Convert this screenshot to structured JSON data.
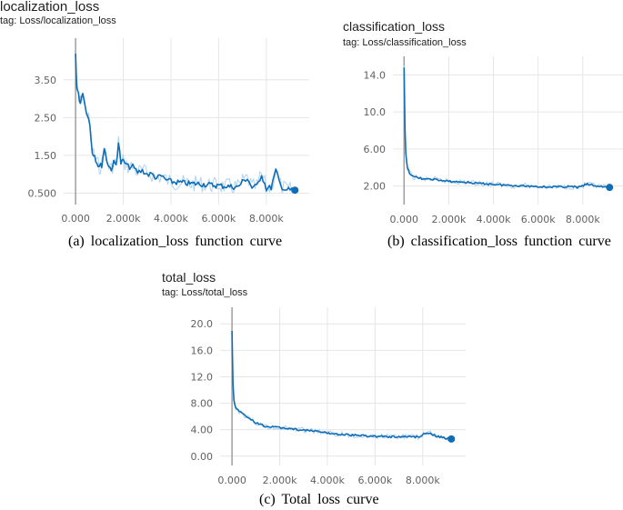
{
  "figure": {
    "panels": [
      {
        "title": "localization_loss",
        "tag": "tag: Loss/localization_loss",
        "caption": "(a) localization_loss function curve"
      },
      {
        "title": "classification_loss",
        "tag": "tag: Loss/classification_loss",
        "caption": "(b) classification_loss function curve"
      },
      {
        "title": "total_loss",
        "tag": "tag: Loss/total_loss",
        "caption": "(c) Total loss curve"
      }
    ]
  },
  "chart_data": [
    {
      "type": "line",
      "title": "localization_loss",
      "x_tick_labels": [
        "0.000",
        "2.000k",
        "4.000k",
        "6.000k",
        "8.000k"
      ],
      "x_ticks": [
        0,
        2000,
        4000,
        6000,
        8000
      ],
      "y_tick_labels": [
        "3.50",
        "2.50",
        "1.50",
        "0.500"
      ],
      "y_ticks": [
        3.5,
        2.5,
        1.5,
        0.5
      ],
      "xlim": [
        -500,
        9800
      ],
      "ylim": [
        0.2,
        4.6
      ],
      "grid": true,
      "colors": {
        "line": "#0f6db8",
        "raw": "#aed3ef",
        "axis": "#9e9e9e"
      },
      "series": [
        {
          "x": [
            0,
            50,
            120,
            200,
            300,
            400,
            500,
            600,
            700,
            800,
            900,
            1000,
            1100,
            1200,
            1300,
            1400,
            1500,
            1600,
            1700,
            1800,
            1900,
            2000,
            2200,
            2400,
            2600,
            2800,
            3000,
            3200,
            3400,
            3600,
            3800,
            4000,
            4400,
            4800,
            5200,
            5600,
            6000,
            6400,
            6800,
            7000,
            7200,
            7400,
            7600,
            7800,
            8000,
            8200,
            8400,
            8600,
            8800,
            9000,
            9200
          ],
          "y": [
            4.2,
            3.3,
            3.1,
            2.9,
            3.2,
            2.8,
            2.6,
            2.3,
            1.6,
            1.5,
            1.3,
            1.2,
            1.25,
            1.7,
            1.4,
            1.2,
            1.15,
            1.3,
            1.25,
            1.85,
            1.3,
            1.35,
            1.2,
            1.2,
            1.05,
            1.1,
            1.0,
            1.0,
            0.9,
            0.95,
            0.85,
            0.8,
            0.78,
            0.75,
            0.75,
            0.72,
            0.7,
            0.68,
            0.66,
            0.8,
            0.9,
            0.65,
            0.68,
            1.0,
            0.62,
            0.65,
            1.1,
            0.7,
            0.6,
            0.58,
            0.58
          ]
        }
      ]
    },
    {
      "type": "line",
      "title": "classification_loss",
      "x_tick_labels": [
        "0.000",
        "2.000k",
        "4.000k",
        "6.000k",
        "8.000k"
      ],
      "x_ticks": [
        0,
        2000,
        4000,
        6000,
        8000
      ],
      "y_tick_labels": [
        "14.0",
        "10.0",
        "6.00",
        "2.00"
      ],
      "y_ticks": [
        14,
        10,
        6,
        2
      ],
      "xlim": [
        -500,
        9800
      ],
      "ylim": [
        0,
        16
      ],
      "grid": true,
      "colors": {
        "line": "#0f6db8",
        "raw": "#aed3ef",
        "axis": "#9e9e9e"
      },
      "series": [
        {
          "x": [
            0,
            40,
            80,
            150,
            250,
            400,
            600,
            800,
            1000,
            1300,
            1600,
            2000,
            2400,
            2800,
            3200,
            3600,
            4000,
            4500,
            5000,
            5500,
            6000,
            6500,
            7000,
            7400,
            7800,
            8200,
            8600,
            9000,
            9200
          ],
          "y": [
            14.7,
            8.0,
            5.5,
            4.0,
            3.4,
            3.0,
            2.9,
            2.8,
            2.7,
            2.75,
            2.6,
            2.5,
            2.45,
            2.4,
            2.3,
            2.25,
            2.2,
            2.1,
            2.05,
            2.0,
            1.95,
            1.9,
            1.9,
            1.95,
            1.85,
            2.2,
            2.0,
            1.9,
            1.85
          ]
        }
      ]
    },
    {
      "type": "line",
      "title": "total_loss",
      "x_tick_labels": [
        "0.000",
        "2.000k",
        "4.000k",
        "6.000k",
        "8.000k"
      ],
      "x_ticks": [
        0,
        2000,
        4000,
        6000,
        8000
      ],
      "y_tick_labels": [
        "20.0",
        "16.0",
        "12.0",
        "8.00",
        "4.00",
        "0.00"
      ],
      "y_ticks": [
        20,
        16,
        12,
        8,
        4,
        0
      ],
      "xlim": [
        -500,
        9800
      ],
      "ylim": [
        -1.4,
        22.5
      ],
      "grid": true,
      "colors": {
        "line": "#0f6db8",
        "raw": "#aed3ef",
        "axis": "#9e9e9e"
      },
      "series": [
        {
          "x": [
            0,
            40,
            80,
            150,
            250,
            400,
            600,
            800,
            1000,
            1200,
            1400,
            1700,
            2000,
            2400,
            2800,
            3200,
            3600,
            4000,
            4500,
            5000,
            5500,
            6000,
            6500,
            7000,
            7400,
            7800,
            8200,
            8600,
            9000,
            9200
          ],
          "y": [
            19.0,
            11.0,
            8.5,
            7.3,
            6.9,
            6.5,
            6.0,
            5.5,
            5.0,
            4.8,
            4.5,
            4.4,
            4.3,
            4.2,
            4.0,
            3.9,
            3.7,
            3.5,
            3.3,
            3.2,
            3.1,
            3.0,
            2.95,
            2.9,
            3.0,
            2.9,
            3.6,
            3.0,
            2.7,
            2.6
          ]
        }
      ]
    }
  ]
}
